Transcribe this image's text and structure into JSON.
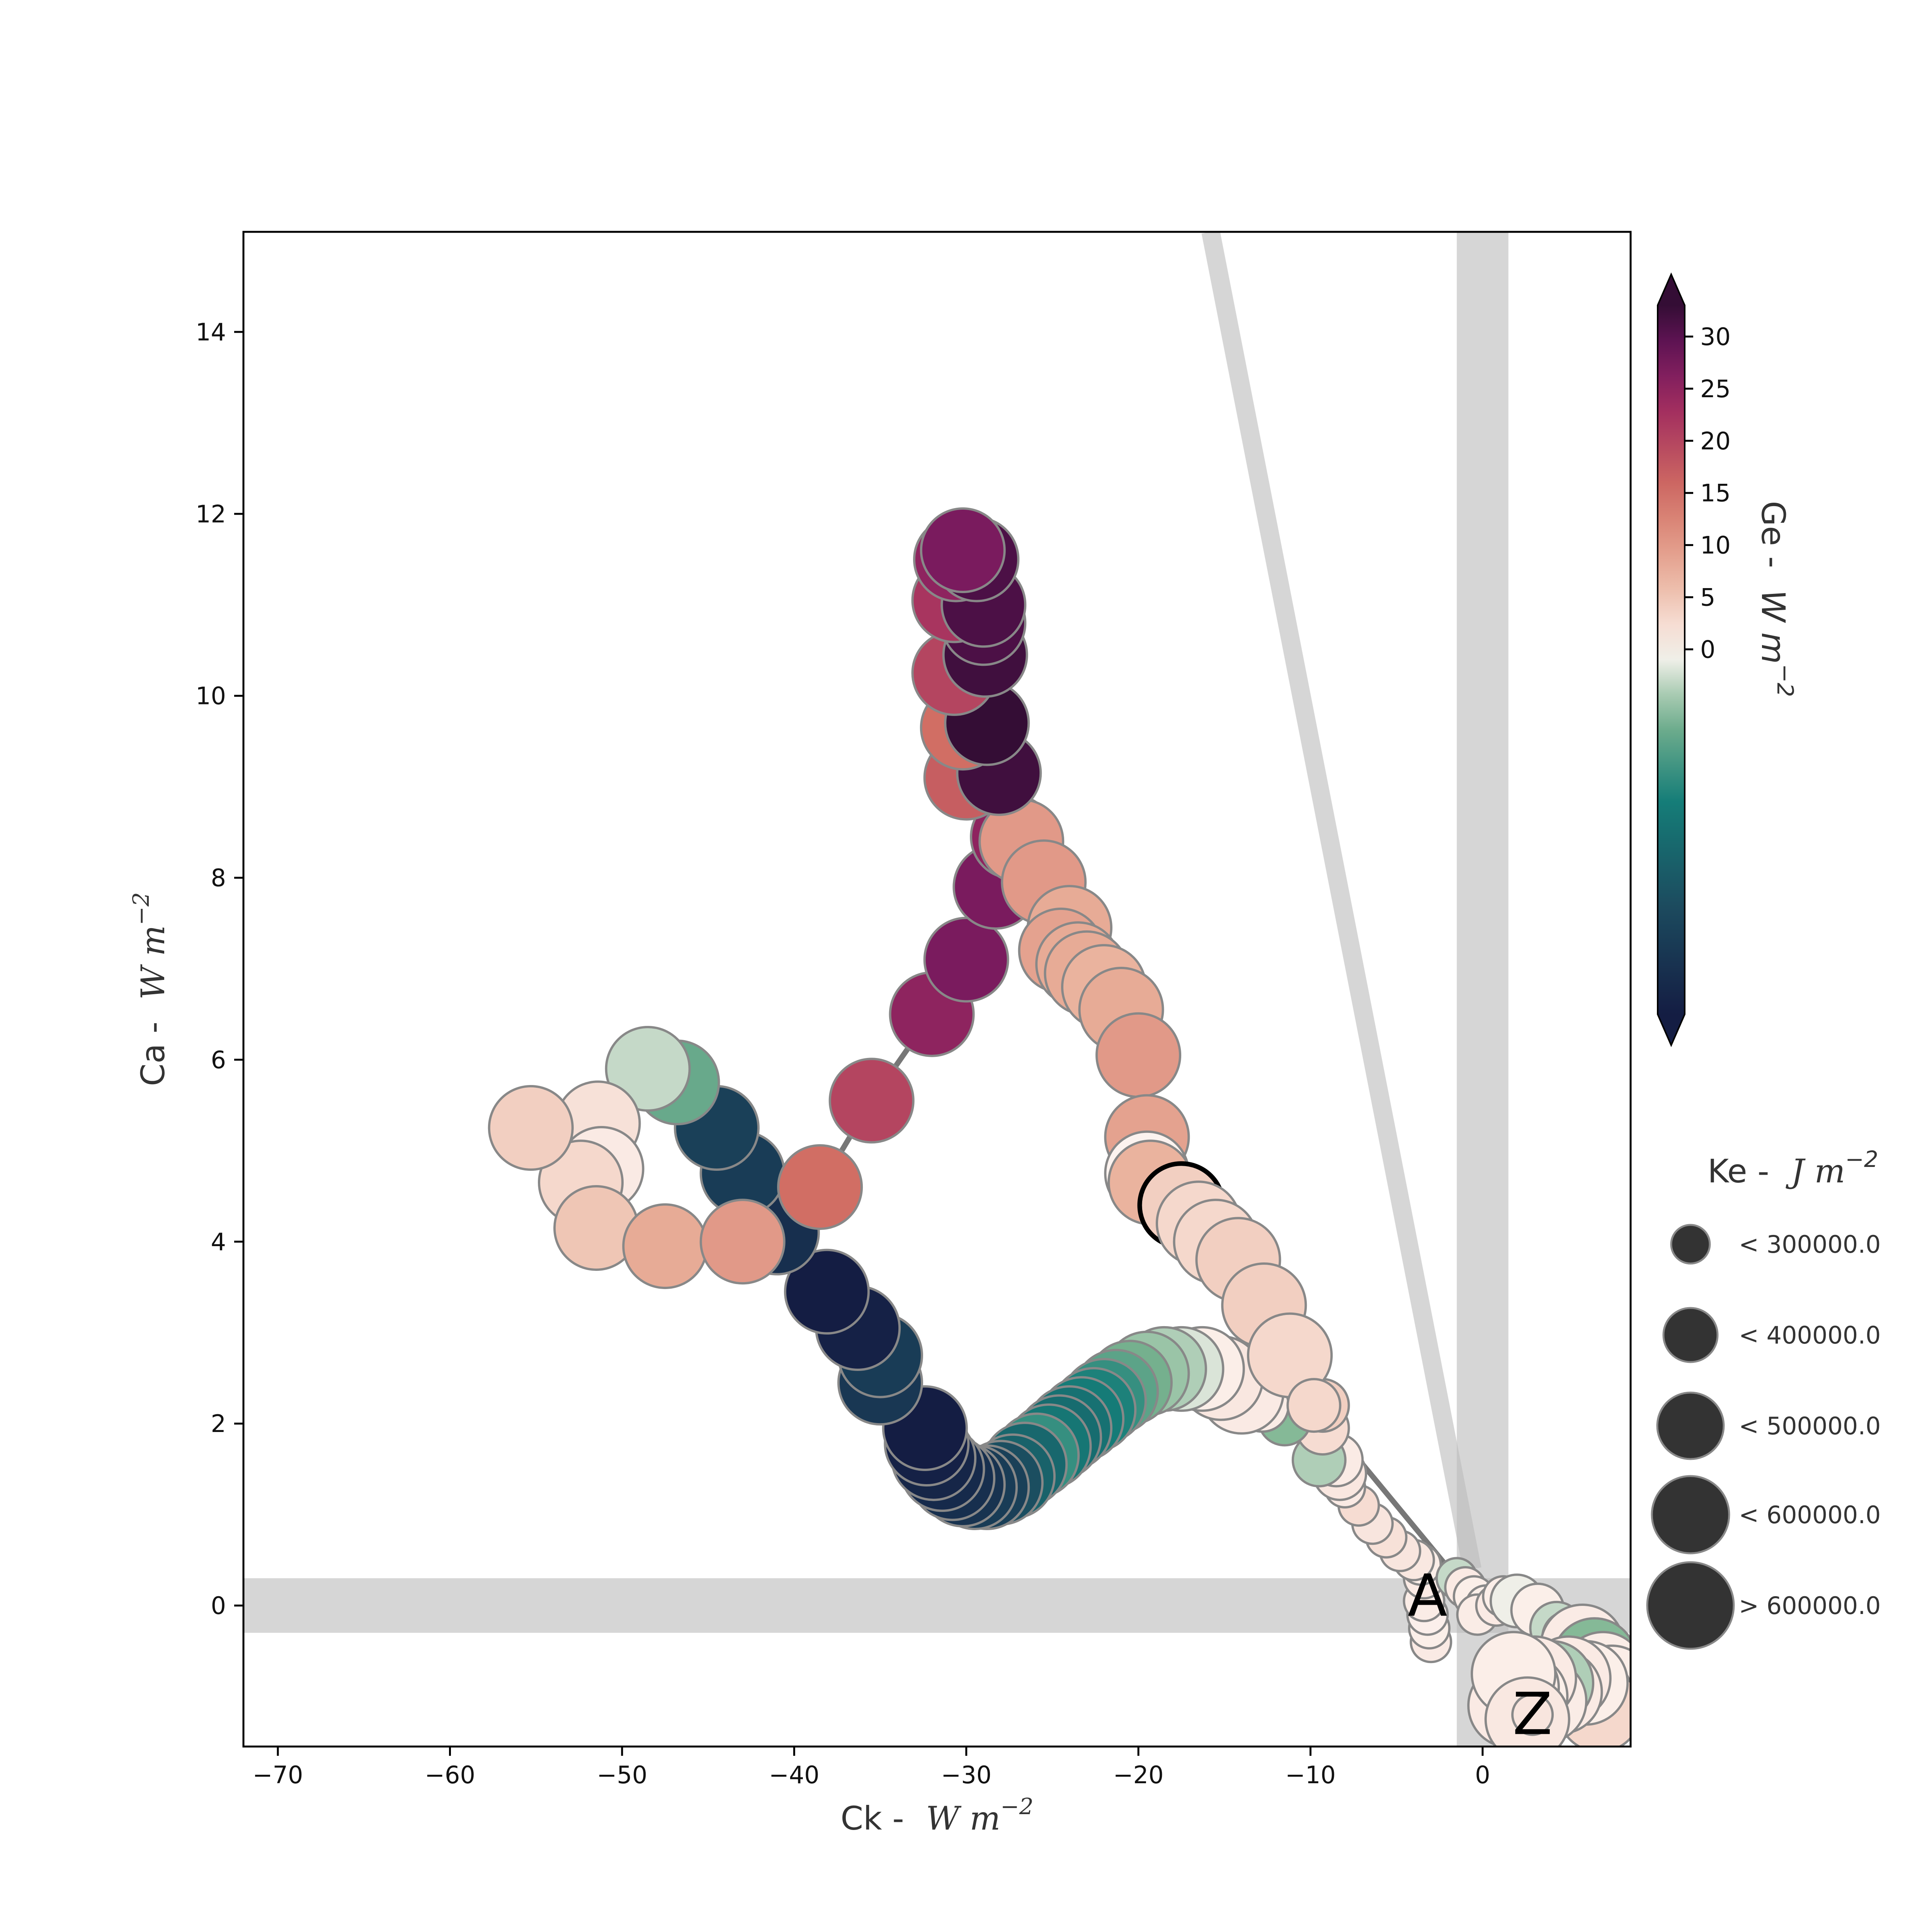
{
  "chart_data": {
    "type": "scatter",
    "x_axis": {
      "label_prefix": "Ck - ",
      "label_unit": "W m",
      "label_exp": "−2",
      "range": [
        -72,
        8.6
      ],
      "ticks": [
        -70,
        -60,
        -50,
        -40,
        -30,
        -20,
        -10,
        0
      ],
      "tick_labels": [
        "−70",
        "−60",
        "−50",
        "−40",
        "−30",
        "−20",
        "−10",
        "0"
      ]
    },
    "y_axis": {
      "label_prefix": "Ca - ",
      "label_unit": "W m",
      "label_exp": "−2",
      "range": [
        -1.55,
        15.1
      ],
      "ticks": [
        0,
        2,
        4,
        6,
        8,
        10,
        12,
        14
      ],
      "tick_labels": [
        "0",
        "2",
        "4",
        "6",
        "8",
        "10",
        "12",
        "14"
      ]
    },
    "colorbar": {
      "label_prefix": "Ge - ",
      "label_unit": "W m",
      "label_exp": "−2",
      "colormap": "curl",
      "range": [
        -35,
        33
      ],
      "ticks": [
        0,
        5,
        10,
        15,
        20,
        25,
        30
      ],
      "tick_labels": [
        "0",
        "5",
        "10",
        "15",
        "20",
        "25",
        "30"
      ],
      "extend": "both"
    },
    "size_legend": {
      "title_prefix": "Ke - ",
      "title_unit": "J m",
      "title_exp": "−2",
      "entries": [
        {
          "label": "< 300000.0",
          "size_rank": 1
        },
        {
          "label": "< 400000.0",
          "size_rank": 2
        },
        {
          "label": "< 500000.0",
          "size_rank": 3
        },
        {
          "label": "< 600000.0",
          "size_rank": 4
        },
        {
          "label": "> 600000.0",
          "size_rank": 5
        }
      ]
    },
    "shading": {
      "vertical_band_x": [
        -1.5,
        1.5
      ],
      "horizontal_band_y": [
        -0.3,
        0.3
      ],
      "diagonal_line": [
        [
          -15.8,
          15.1
        ],
        [
          -0.6,
          0.4
        ]
      ]
    },
    "annotations": [
      {
        "text": "A",
        "x": -3.2,
        "y": 0.1
      },
      {
        "text": "Z",
        "x": 2.9,
        "y": -1.2
      }
    ],
    "points": [
      [
        -3.0,
        -0.4,
        1.0,
        1
      ],
      [
        -3.1,
        -0.25,
        0.5,
        1
      ],
      [
        -3.2,
        -0.1,
        0.4,
        1
      ],
      [
        -3.4,
        0.05,
        0.8,
        1
      ],
      [
        -3.4,
        0.3,
        1.0,
        1
      ],
      [
        -3.6,
        0.45,
        0.6,
        1
      ],
      [
        -4.0,
        0.5,
        1.2,
        1
      ],
      [
        -4.8,
        0.6,
        1.5,
        1
      ],
      [
        -5.6,
        0.75,
        2.0,
        1
      ],
      [
        -6.4,
        0.9,
        1.5,
        1
      ],
      [
        -7.2,
        1.1,
        2.5,
        1
      ],
      [
        -8.0,
        1.3,
        1.0,
        1
      ],
      [
        -8.3,
        1.45,
        1.3,
        2
      ],
      [
        -8.5,
        1.6,
        0.9,
        2
      ],
      [
        -9.5,
        1.6,
        -4,
        2
      ],
      [
        -9.3,
        1.95,
        2.5,
        2
      ],
      [
        -9.3,
        2.2,
        4.0,
        2
      ],
      [
        -11.5,
        2.05,
        -6,
        2
      ],
      [
        -12.8,
        2.2,
        0.8,
        2
      ],
      [
        -14.0,
        2.35,
        1.0,
        3
      ],
      [
        -15.2,
        2.5,
        1.3,
        3
      ],
      [
        -16.3,
        2.6,
        0.6,
        3
      ],
      [
        -17.5,
        2.6,
        -2,
        3
      ],
      [
        -18.5,
        2.6,
        -4,
        3
      ],
      [
        -19.5,
        2.55,
        -5,
        3
      ],
      [
        -20.5,
        2.45,
        -7,
        3
      ],
      [
        -21.3,
        2.35,
        -9,
        3
      ],
      [
        -22.0,
        2.25,
        -12,
        3
      ],
      [
        -22.6,
        2.15,
        -14,
        3
      ],
      [
        -23.3,
        2.05,
        -15,
        3
      ],
      [
        -24.0,
        1.95,
        -17,
        3
      ],
      [
        -24.6,
        1.85,
        -18,
        3
      ],
      [
        -25.2,
        1.75,
        -16,
        3
      ],
      [
        -25.9,
        1.65,
        -12,
        3
      ],
      [
        -26.6,
        1.55,
        -19,
        3
      ],
      [
        -27.3,
        1.42,
        -20,
        3
      ],
      [
        -28.0,
        1.35,
        -24,
        3
      ],
      [
        -28.8,
        1.3,
        -27,
        3
      ],
      [
        -29.5,
        1.3,
        -28,
        3
      ],
      [
        -30.2,
        1.33,
        -30,
        3
      ],
      [
        -30.8,
        1.4,
        -31,
        3
      ],
      [
        -31.4,
        1.5,
        -32,
        3
      ],
      [
        -31.9,
        1.62,
        -33,
        3
      ],
      [
        -32.3,
        1.78,
        -34,
        3
      ],
      [
        -32.4,
        1.95,
        -35,
        3
      ],
      [
        -35.0,
        2.45,
        -29,
        3
      ],
      [
        -35.0,
        2.75,
        -28,
        3
      ],
      [
        -36.3,
        3.05,
        -34,
        3
      ],
      [
        -38.1,
        3.45,
        -35,
        3
      ],
      [
        -41.0,
        4.1,
        -31,
        3
      ],
      [
        -43.0,
        4.75,
        -28,
        3
      ],
      [
        -44.5,
        5.25,
        -27,
        3
      ],
      [
        -46.8,
        5.75,
        -8,
        3
      ],
      [
        -48.5,
        5.9,
        -3,
        3
      ],
      [
        -51.4,
        5.3,
        2,
        3
      ],
      [
        -51.2,
        4.8,
        1,
        3
      ],
      [
        -52.4,
        4.65,
        3,
        3
      ],
      [
        -55.3,
        5.25,
        4,
        3
      ],
      [
        -51.5,
        4.15,
        5,
        3
      ],
      [
        -47.5,
        3.95,
        8,
        3
      ],
      [
        -43.0,
        4.0,
        10,
        3
      ],
      [
        -38.5,
        4.6,
        15,
        3
      ],
      [
        -35.5,
        5.55,
        20,
        3
      ],
      [
        -32.0,
        6.5,
        25,
        3
      ],
      [
        -30.0,
        7.1,
        27,
        3
      ],
      [
        -28.3,
        7.9,
        27,
        3
      ],
      [
        -27.3,
        8.45,
        25,
        3
      ],
      [
        -26.8,
        8.4,
        10,
        3
      ],
      [
        -30.0,
        9.1,
        17,
        3
      ],
      [
        -28.1,
        9.15,
        32,
        3
      ],
      [
        -30.2,
        9.65,
        15,
        3
      ],
      [
        -28.8,
        9.7,
        33,
        3
      ],
      [
        -30.7,
        10.25,
        20,
        3
      ],
      [
        -28.9,
        10.45,
        32,
        3
      ],
      [
        -29.0,
        10.8,
        31,
        3
      ],
      [
        -30.7,
        11.05,
        22,
        3
      ],
      [
        -29.0,
        11.0,
        31,
        3
      ],
      [
        -30.6,
        11.5,
        25,
        3
      ],
      [
        -29.4,
        11.5,
        31,
        3
      ],
      [
        -30.2,
        11.6,
        27,
        3
      ],
      [
        -25.5,
        7.95,
        10,
        3
      ],
      [
        -24.0,
        7.45,
        8,
        3
      ],
      [
        -24.5,
        7.2,
        9,
        3
      ],
      [
        -23.5,
        7.05,
        8,
        3
      ],
      [
        -23.0,
        6.95,
        8,
        3
      ],
      [
        -22.0,
        6.8,
        7,
        3
      ],
      [
        -21.0,
        6.55,
        8,
        3
      ],
      [
        -20.0,
        6.05,
        10,
        3
      ],
      [
        -19.5,
        5.15,
        9,
        3
      ],
      [
        -19.5,
        4.75,
        0,
        3
      ],
      [
        -19.3,
        4.65,
        7,
        3
      ],
      [
        -17.5,
        4.4,
        4,
        3
      ],
      [
        -16.5,
        4.2,
        3,
        3
      ],
      [
        -15.5,
        4.0,
        3,
        3
      ],
      [
        -14.2,
        3.8,
        4,
        3
      ],
      [
        -12.7,
        3.3,
        4,
        3
      ],
      [
        -11.2,
        2.75,
        3,
        3
      ],
      [
        -9.8,
        2.2,
        3,
        2
      ],
      [
        -1.5,
        0.3,
        -3,
        1
      ],
      [
        -1.0,
        0.2,
        1,
        1
      ],
      [
        -0.5,
        0.1,
        0.5,
        1
      ],
      [
        0.2,
        0.0,
        0.5,
        1
      ],
      [
        -0.3,
        -0.1,
        0.8,
        1
      ],
      [
        0.8,
        0.0,
        1.0,
        1
      ],
      [
        1.2,
        0.1,
        0.6,
        1
      ],
      [
        2.0,
        0.05,
        -1,
        2
      ],
      [
        3.2,
        -0.05,
        0.5,
        2
      ],
      [
        4.3,
        -0.25,
        -3,
        2
      ],
      [
        5.0,
        -0.35,
        0.5,
        2
      ],
      [
        5.8,
        -0.45,
        0.9,
        3
      ],
      [
        6.5,
        -0.6,
        -6,
        3
      ],
      [
        7.0,
        -0.75,
        0.7,
        3
      ],
      [
        7.5,
        -0.9,
        0.6,
        4
      ],
      [
        6.3,
        -1.0,
        1.0,
        4
      ],
      [
        6.8,
        -1.15,
        3,
        5
      ],
      [
        6.0,
        -0.85,
        0.5,
        4
      ],
      [
        5.0,
        -0.8,
        1.0,
        4
      ],
      [
        4.5,
        -0.95,
        1.0,
        4
      ],
      [
        4.0,
        -0.85,
        -4,
        4
      ],
      [
        3.6,
        -1.05,
        0.8,
        4
      ],
      [
        3.0,
        -0.8,
        1.0,
        5
      ],
      [
        2.5,
        -1.0,
        0.5,
        5
      ],
      [
        2.0,
        -0.9,
        0.8,
        5
      ],
      [
        1.6,
        -1.1,
        1.0,
        5
      ],
      [
        1.8,
        -0.75,
        0.6,
        5
      ],
      [
        2.6,
        -1.25,
        1.2,
        5
      ],
      [
        2.9,
        -1.2,
        1.5,
        1
      ]
    ]
  }
}
